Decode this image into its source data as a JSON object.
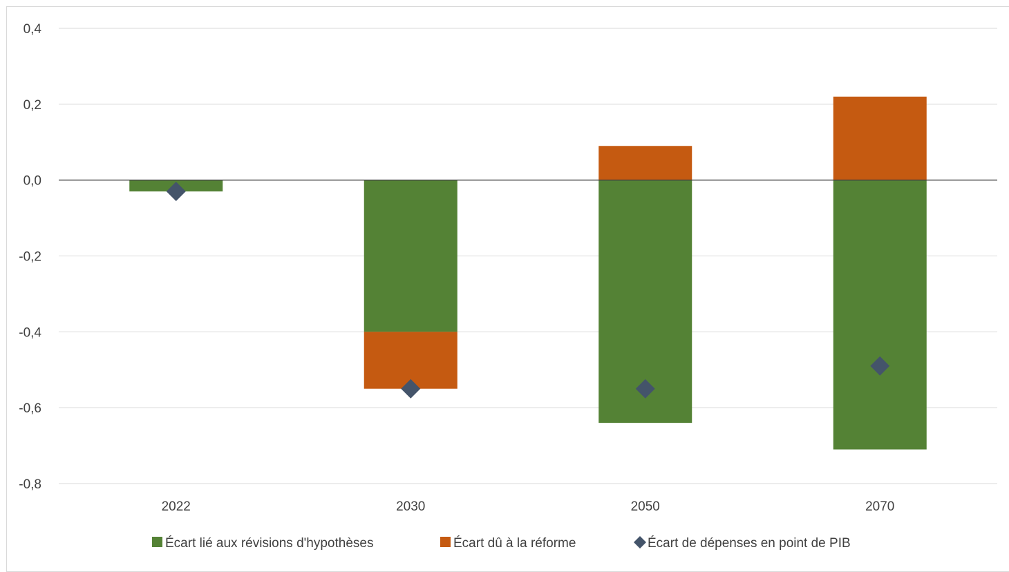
{
  "chart_data": {
    "type": "bar",
    "stacked": true,
    "title": "",
    "xlabel": "",
    "ylabel": "",
    "categories": [
      "2022",
      "2030",
      "2050",
      "2070"
    ],
    "ylim": [
      -0.8,
      0.4
    ],
    "yticks": [
      0.4,
      0.2,
      0.0,
      -0.2,
      -0.4,
      -0.6,
      -0.8
    ],
    "ytick_labels": [
      "0,4",
      "0,2",
      "0,0",
      "-0,2",
      "-0,4",
      "-0,6",
      "-0,8"
    ],
    "grid": true,
    "legend_position": "bottom",
    "series": [
      {
        "name": "Écart lié aux révisions d'hypothèses",
        "kind": "bar",
        "color": "#548235",
        "values": [
          -0.03,
          -0.4,
          -0.64,
          -0.71
        ]
      },
      {
        "name": "Écart dû à la réforme",
        "kind": "bar",
        "color": "#C55A11",
        "values": [
          0.0,
          -0.15,
          0.09,
          0.22
        ]
      },
      {
        "name": "Écart de dépenses en point de PIB",
        "kind": "marker",
        "marker": "diamond",
        "color": "#44546A",
        "values": [
          -0.03,
          -0.55,
          -0.55,
          -0.49
        ]
      }
    ]
  }
}
